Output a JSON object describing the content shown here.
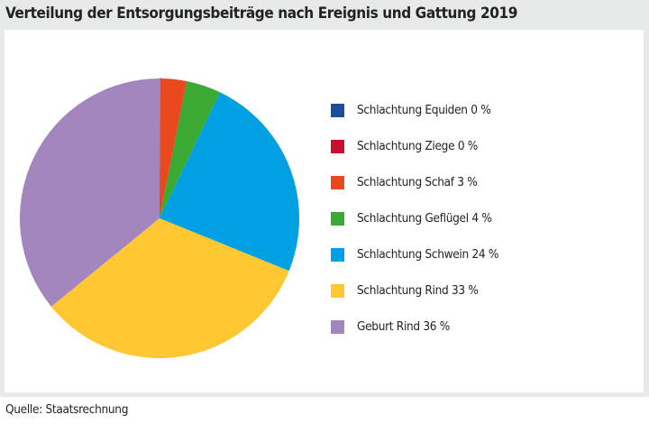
{
  "title": "Verteilung der Entsorgungsbeiträge nach Ereignis und Gattung 2019",
  "source": "Quelle: Staatsrechnung",
  "chart_data": {
    "type": "pie",
    "title": "Verteilung der Entsorgungsbeiträge nach Ereignis und Gattung 2019",
    "legend_position": "right",
    "start": "12 o'clock, clockwise",
    "slices": [
      {
        "name": "Schlachtung Equiden",
        "value": 0,
        "label": "Schlachtung Equiden 0 %",
        "color": "#1b4f9c"
      },
      {
        "name": "Schlachtung Ziege",
        "value": 0,
        "label": "Schlachtung Ziege 0 %",
        "color": "#c8102e"
      },
      {
        "name": "Schlachtung Schaf",
        "value": 3,
        "label": "Schlachtung Schaf 3 %",
        "color": "#e8491d"
      },
      {
        "name": "Schlachtung Geflügel",
        "value": 4,
        "label": "Schlachtung Geflügel 4 %",
        "color": "#3aaa35"
      },
      {
        "name": "Schlachtung Schwein",
        "value": 24,
        "label": "Schlachtung Schwein 24 %",
        "color": "#00a0e3"
      },
      {
        "name": "Schlachtung Rind",
        "value": 33,
        "label": "Schlachtung Rind 33 %",
        "color": "#ffc732"
      },
      {
        "name": "Geburt Rind",
        "value": 36,
        "label": "Geburt Rind 36 %",
        "color": "#a386bd"
      }
    ]
  }
}
